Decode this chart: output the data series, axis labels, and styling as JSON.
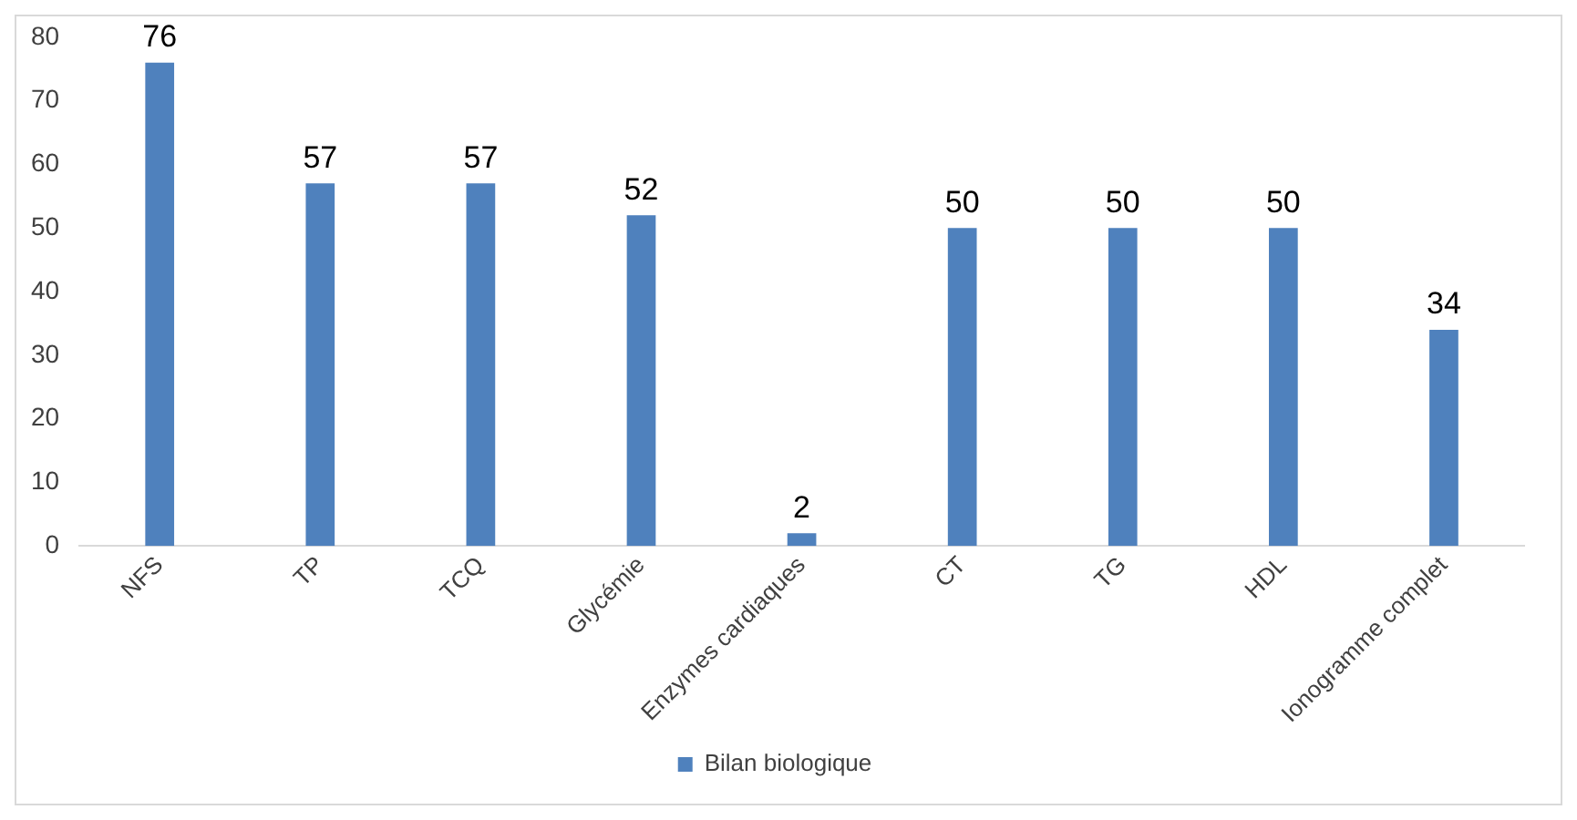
{
  "chart_data": {
    "type": "bar",
    "categories": [
      "NFS",
      "TP",
      "TCQ",
      "Glycémie",
      "Enzymes cardiaques",
      "CT",
      "TG",
      "HDL",
      "Ionogramme complet"
    ],
    "series": [
      {
        "name": "Bilan biologique",
        "color": "#4f81bd",
        "values": [
          76,
          57,
          57,
          52,
          2,
          50,
          50,
          50,
          34
        ]
      }
    ],
    "ylim": [
      0,
      80
    ],
    "yticks": [
      0,
      10,
      20,
      30,
      40,
      50,
      60,
      70,
      80
    ],
    "grid": false,
    "legend": "bottom",
    "data_labels": true
  }
}
